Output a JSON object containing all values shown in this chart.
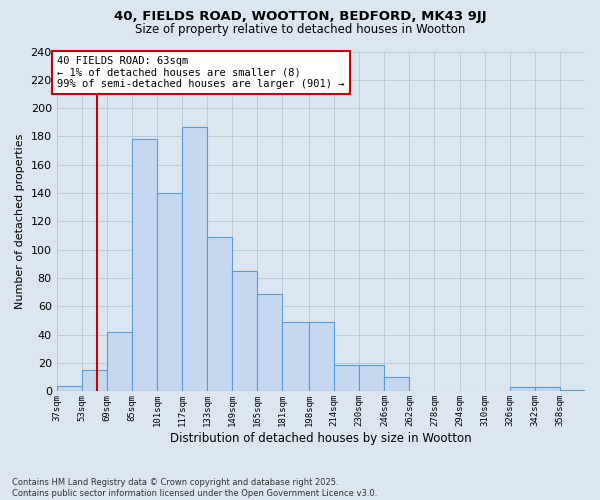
{
  "title": "40, FIELDS ROAD, WOOTTON, BEDFORD, MK43 9JJ",
  "subtitle": "Size of property relative to detached houses in Wootton",
  "xlabel": "Distribution of detached houses by size in Wootton",
  "ylabel": "Number of detached properties",
  "footer_line1": "Contains HM Land Registry data © Crown copyright and database right 2025.",
  "footer_line2": "Contains public sector information licensed under the Open Government Licence v3.0.",
  "bin_labels": [
    "37sqm",
    "53sqm",
    "69sqm",
    "85sqm",
    "101sqm",
    "117sqm",
    "133sqm",
    "149sqm",
    "165sqm",
    "181sqm",
    "198sqm",
    "214sqm",
    "230sqm",
    "246sqm",
    "262sqm",
    "278sqm",
    "294sqm",
    "310sqm",
    "326sqm",
    "342sqm",
    "358sqm"
  ],
  "bin_edges": [
    37,
    53,
    69,
    85,
    101,
    117,
    133,
    149,
    165,
    181,
    198,
    214,
    230,
    246,
    262,
    278,
    294,
    310,
    326,
    342,
    358,
    374
  ],
  "values": [
    4,
    15,
    42,
    178,
    140,
    187,
    109,
    85,
    69,
    49,
    49,
    19,
    19,
    10,
    0,
    0,
    0,
    0,
    3,
    3,
    1
  ],
  "bar_color": "#c5d8f0",
  "bar_edge_color": "#5b9bd5",
  "red_line_x": 63,
  "annotation_title": "40 FIELDS ROAD: 63sqm",
  "annotation_line1": "← 1% of detached houses are smaller (8)",
  "annotation_line2": "99% of semi-detached houses are larger (901) →",
  "annotation_box_color": "#ffffff",
  "annotation_edge_color": "#cc0000",
  "red_line_color": "#cc0000",
  "grid_color": "#b8c8d8",
  "background_color": "#dce6f0",
  "ylim": [
    0,
    240
  ],
  "yticks": [
    0,
    20,
    40,
    60,
    80,
    100,
    120,
    140,
    160,
    180,
    200,
    220,
    240
  ]
}
